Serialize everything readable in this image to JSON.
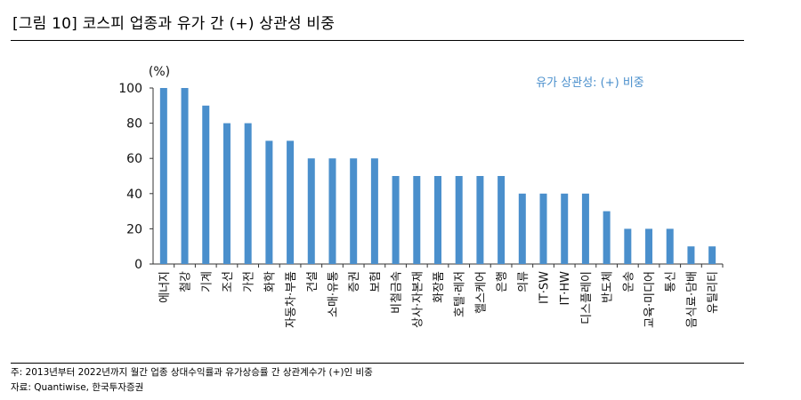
{
  "header": {
    "title": "[그림 10] 코스피 업종과 유가 간 (+) 상관성 비중"
  },
  "footer": {
    "note": "주: 2013년부터 2022년까지 월간 업종 상대수익률과 유가상승률 간 상관계수가 (+)인 비중",
    "source": "자료: Quantiwise, 한국투자증권"
  },
  "chart_data": {
    "type": "bar",
    "title": "",
    "xlabel": "",
    "ylabel": "(%)",
    "ylim": [
      0,
      100
    ],
    "yticks": [
      0,
      20,
      40,
      60,
      80,
      100
    ],
    "grid": false,
    "legend_position": "top-right",
    "bar_color": "#4a8fcc",
    "categories": [
      "에너지",
      "철강",
      "기계",
      "조선",
      "가전",
      "화학",
      "자동차·부품",
      "건설",
      "소매·유통",
      "증권",
      "보험",
      "비철금속",
      "상사·자본재",
      "화장품",
      "호텔·레저",
      "헬스케어",
      "은행",
      "의류",
      "IT·SW",
      "IT·HW",
      "디스플레이",
      "반도체",
      "운송",
      "교육·미디어",
      "통신",
      "음식료·담배",
      "유틸리티"
    ],
    "series": [
      {
        "name": "유가 상관성: (+) 비중",
        "values": [
          100,
          100,
          90,
          80,
          80,
          70,
          70,
          60,
          60,
          60,
          60,
          50,
          50,
          50,
          50,
          50,
          50,
          40,
          40,
          40,
          40,
          30,
          20,
          20,
          20,
          10,
          10
        ]
      }
    ]
  }
}
